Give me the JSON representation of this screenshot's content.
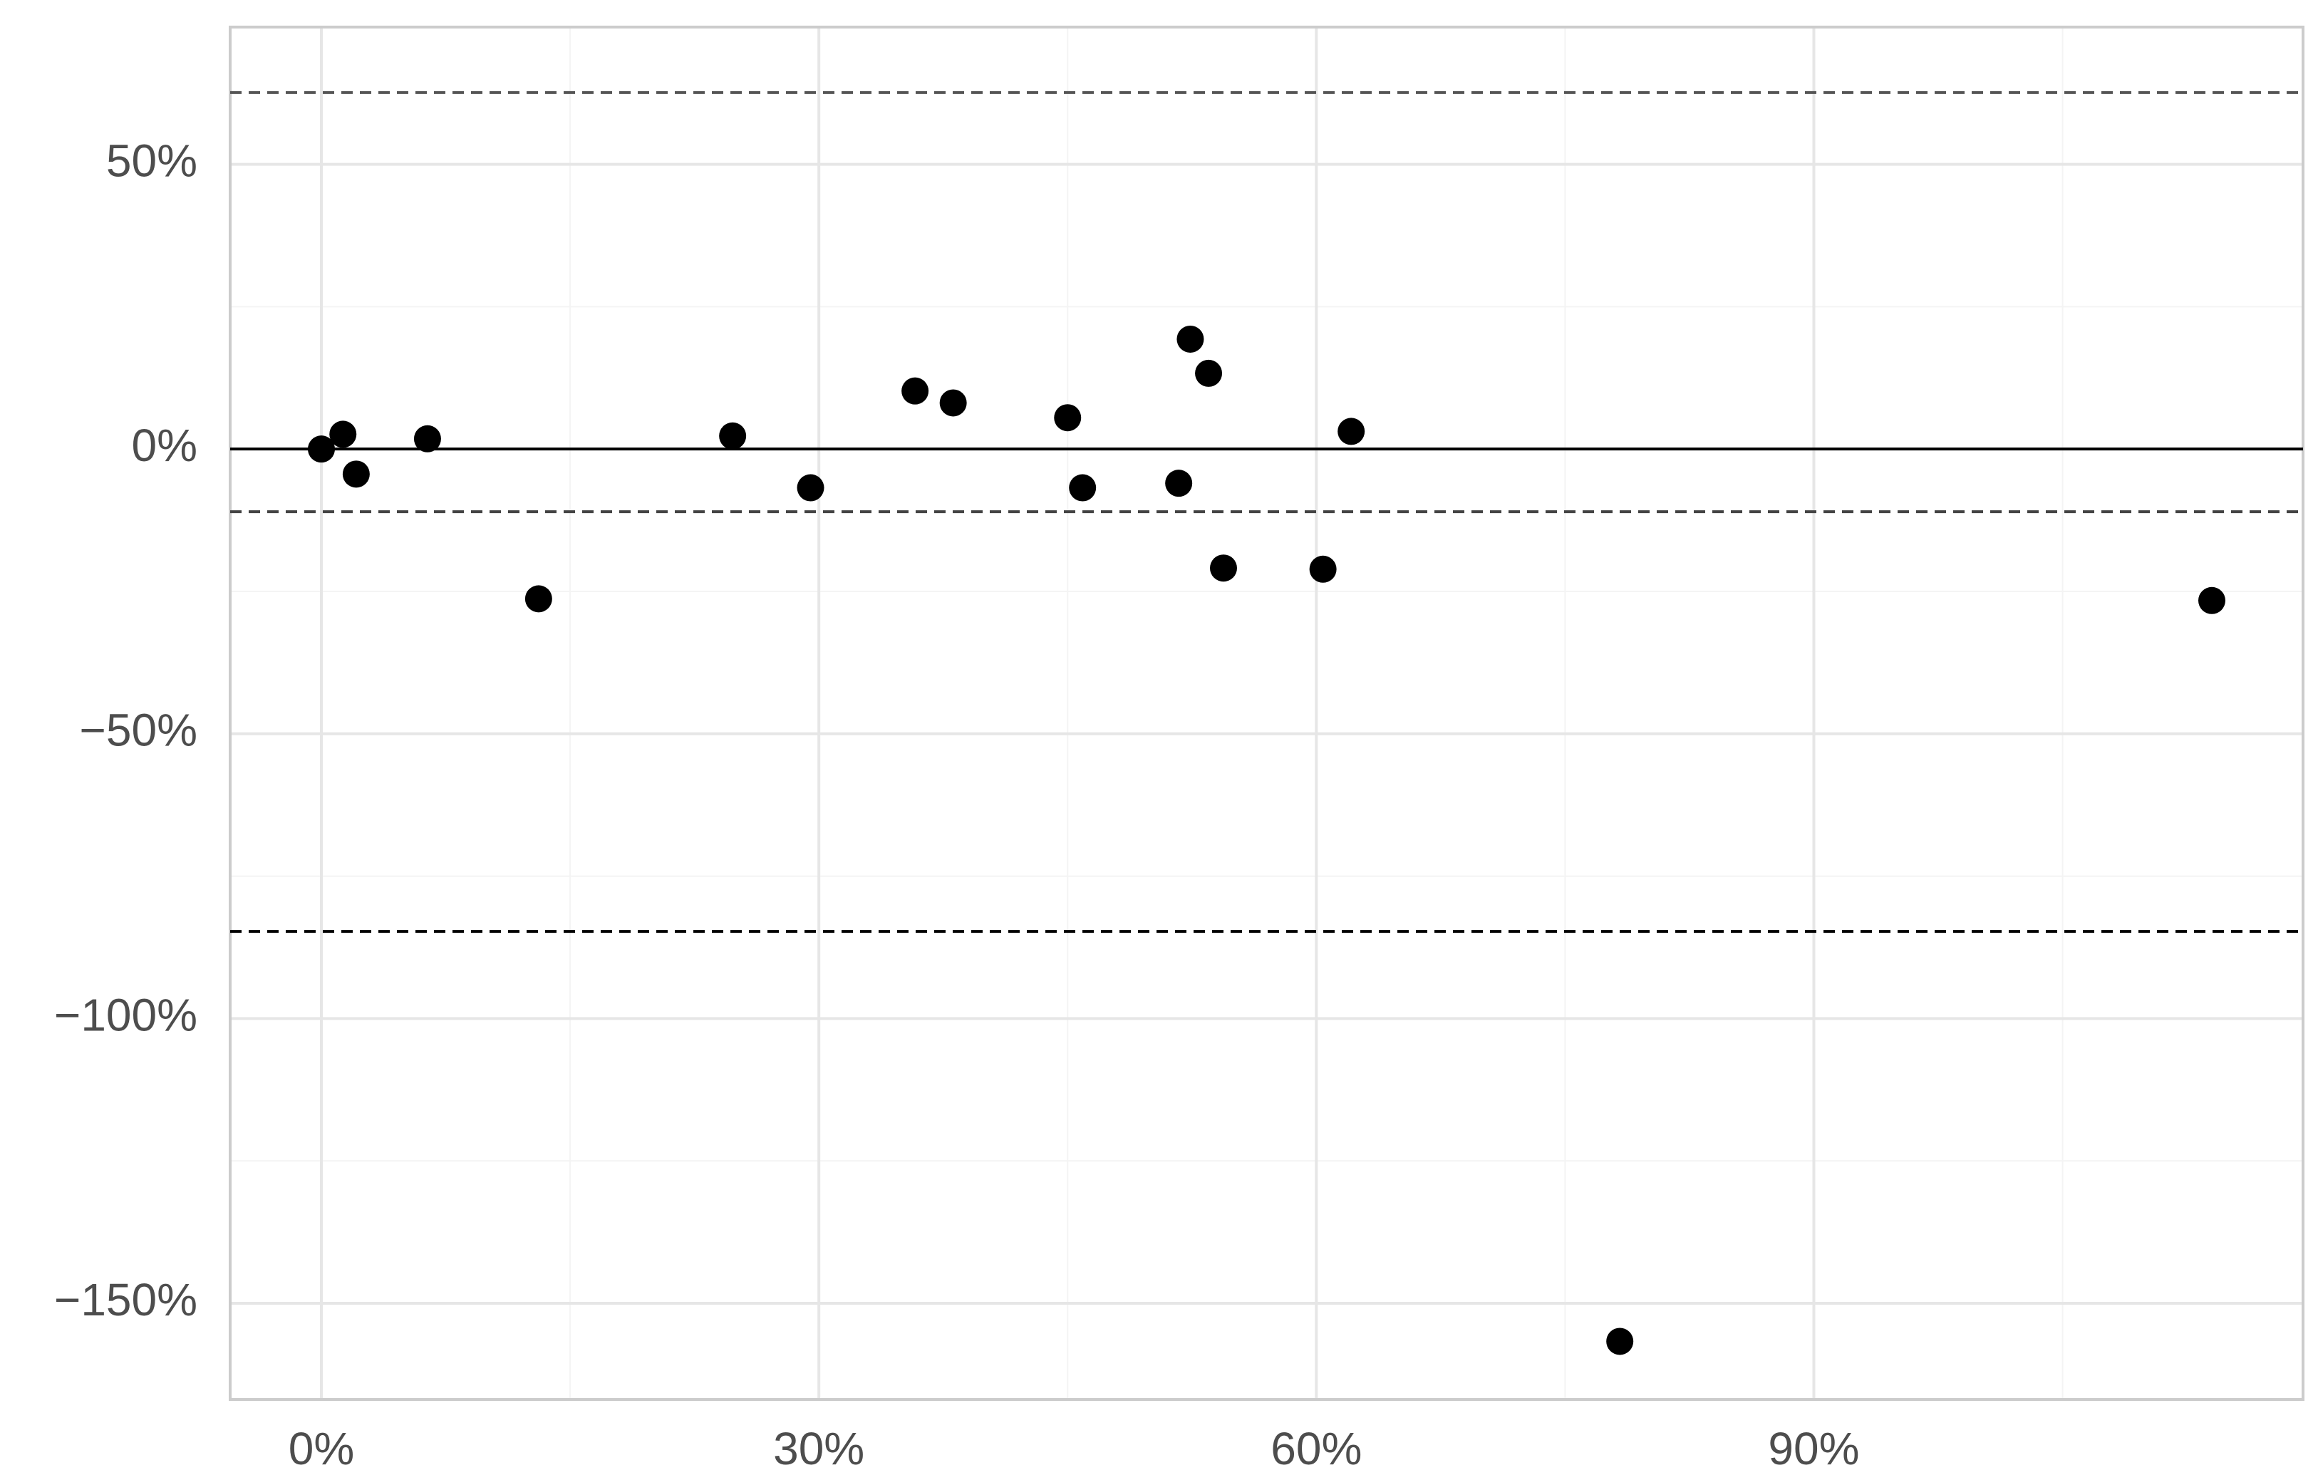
{
  "chart_data": {
    "type": "scatter",
    "x": [
      0,
      1.3,
      2.1,
      6.4,
      13.1,
      24.8,
      29.5,
      35.8,
      38.1,
      45.0,
      45.9,
      51.7,
      52.4,
      53.5,
      54.4,
      60.4,
      62.1,
      78.3,
      114.0
    ],
    "values": [
      0,
      2.6,
      -4.4,
      1.8,
      -26.3,
      2.3,
      -6.8,
      10.2,
      8.1,
      5.5,
      -6.8,
      -6.0,
      19.3,
      13.3,
      -20.9,
      -21.1,
      3.1,
      -156.7,
      -26.6
    ],
    "color": "#000000",
    "xlim": [
      -5.5,
      119.5
    ],
    "ylim": [
      -166.9,
      74.1
    ],
    "xticks": [
      {
        "value": 0,
        "label": "0%"
      },
      {
        "value": 30,
        "label": "30%"
      },
      {
        "value": 60,
        "label": "60%"
      },
      {
        "value": 90,
        "label": "90%"
      }
    ],
    "yticks": [
      {
        "value": 50,
        "label": "50%"
      },
      {
        "value": 0,
        "label": "0%"
      },
      {
        "value": -50,
        "label": "−50%"
      },
      {
        "value": -100,
        "label": "−100%"
      },
      {
        "value": -150,
        "label": "−150%"
      }
    ],
    "grid": true,
    "hlines": [
      {
        "value": 0,
        "color": "#000000",
        "dash": false
      },
      {
        "value": 62.6,
        "color": "#555555",
        "dash": true
      },
      {
        "value": -11.0,
        "color": "#444444",
        "dash": true
      },
      {
        "value": -84.7,
        "color": "#000000",
        "dash": true
      }
    ]
  }
}
